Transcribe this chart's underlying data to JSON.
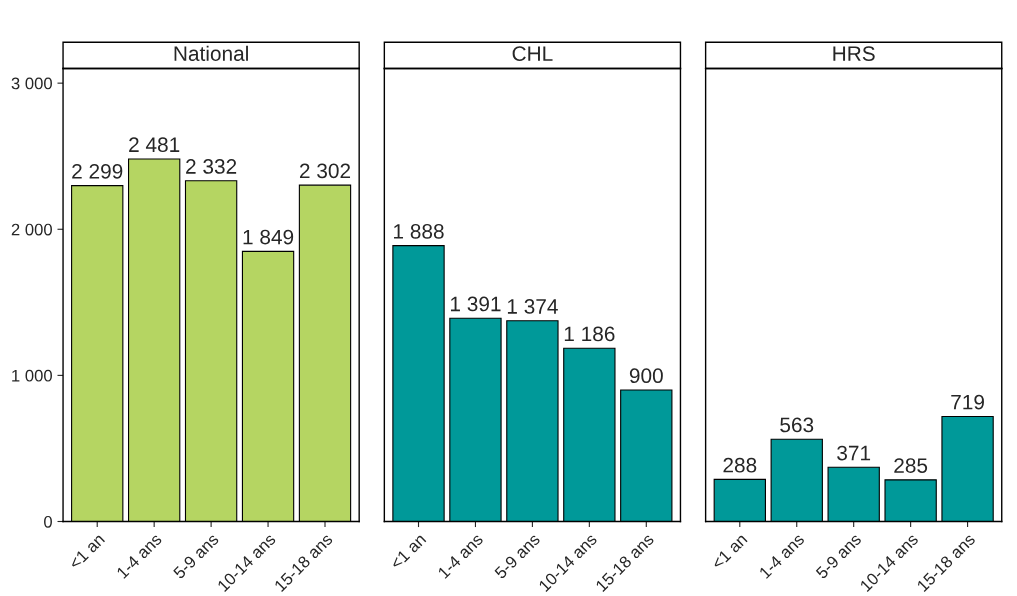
{
  "chart_data": [
    {
      "type": "bar",
      "title": "National",
      "categories": [
        "<1 an",
        "1-4 ans",
        "5-9 ans",
        "10-14 ans",
        "15-18 ans"
      ],
      "values": [
        2299,
        2481,
        2332,
        1849,
        2302
      ],
      "value_labels": [
        "2 299",
        "2 481",
        "2 332",
        "1 849",
        "2 302"
      ],
      "color": "#b5d562",
      "ylim": [
        0,
        3100
      ],
      "yticks": [
        0,
        {
          "value": 1000,
          "label": "1 000"
        },
        {
          "value": 2000,
          "label": "2 000"
        },
        {
          "value": 3000,
          "label": "3 000"
        }
      ],
      "grid": false
    },
    {
      "type": "bar",
      "title": "CHL",
      "categories": [
        "<1 an",
        "1-4 ans",
        "5-9 ans",
        "10-14 ans",
        "15-18 ans"
      ],
      "values": [
        1888,
        1391,
        1374,
        1186,
        900
      ],
      "value_labels": [
        "1 888",
        "1 391",
        "1 374",
        "1 186",
        "900"
      ],
      "color": "#009999",
      "ylim": [
        0,
        3100
      ],
      "yticks": [
        0,
        {
          "value": 1000,
          "label": null
        },
        {
          "value": 2000,
          "label": null
        },
        {
          "value": 3000,
          "label": null
        }
      ],
      "tick_labels": "x",
      "grid": false
    },
    {
      "type": "bar",
      "title": "HRS",
      "categories": [
        "<1 an",
        "1-4 ans",
        "5-9 ans",
        "10-14 ans",
        "15-18 ans"
      ],
      "values": [
        288,
        563,
        371,
        285,
        719
      ],
      "value_labels": [
        "288",
        "563",
        "371",
        "285",
        "719"
      ],
      "color": "#009999",
      "ylim": [
        0,
        3100
      ],
      "yticks": [
        0,
        {
          "value": 1000,
          "label": null
        },
        {
          "value": 2000,
          "label": null
        },
        {
          "value": 3000,
          "label": null
        }
      ],
      "tick_labels": "x",
      "grid": false
    }
  ]
}
